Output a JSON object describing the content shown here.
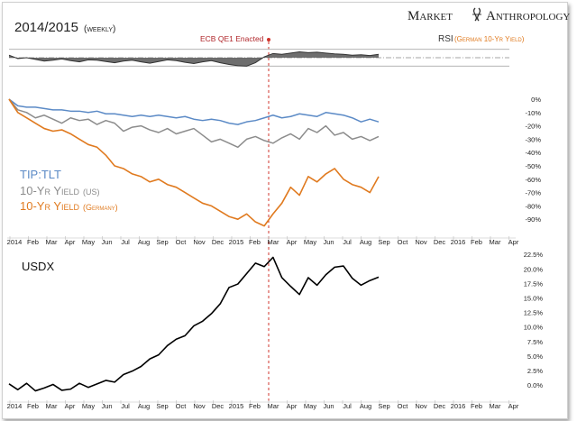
{
  "header": {
    "title": "2014/2015",
    "subtitle": "(weekly)",
    "brand_left": "Market",
    "brand_right": "Anthropology",
    "event_label": "ECB QE1 Enacted",
    "rsi_label": "RSI",
    "rsi_sublabel": "(German 10-Yr Yield)"
  },
  "colors": {
    "tip_tlt": "#5b8ac6",
    "us_yield": "#8c8c8c",
    "germany_yield": "#e07a1f",
    "usdx": "#000000",
    "event_line": "#d0342c",
    "rsi_fill": "#555555"
  },
  "x_axis_labels": [
    "2014",
    "Feb",
    "Mar",
    "Apr",
    "May",
    "Jun",
    "Jul",
    "Aug",
    "Sep",
    "Oct",
    "Nov",
    "Dec",
    "2015",
    "Feb",
    "Mar",
    "Apr",
    "May",
    "Jun",
    "Jul",
    "Aug",
    "Sep",
    "Oct",
    "Nov",
    "Dec",
    "2016",
    "Feb",
    "Mar",
    "Apr"
  ],
  "chart_data": [
    {
      "type": "area",
      "title": "RSI (German 10-Yr Yield)",
      "x": [
        0,
        2,
        4,
        6,
        8,
        10,
        12,
        14,
        16,
        18,
        20,
        22,
        24,
        26,
        28,
        30,
        32,
        34,
        36,
        38,
        40,
        42,
        44,
        46,
        48,
        50,
        52,
        54,
        56,
        58,
        60,
        62,
        64,
        66,
        68,
        70,
        72,
        74,
        76,
        78,
        80,
        82,
        84
      ],
      "values": [
        56,
        48,
        50,
        46,
        42,
        44,
        47,
        43,
        40,
        45,
        44,
        41,
        38,
        42,
        44,
        40,
        37,
        41,
        45,
        43,
        39,
        36,
        40,
        43,
        38,
        34,
        31,
        30,
        38,
        52,
        60,
        58,
        61,
        64,
        62,
        63,
        61,
        59,
        58,
        56,
        57,
        55,
        58
      ],
      "reference_lines": [
        70,
        50,
        30
      ],
      "ylim": [
        20,
        80
      ]
    },
    {
      "type": "line",
      "title": "TIP:TLT / 10-Yr Yield (US) / 10-Yr Yield (Germany)",
      "x": [
        0,
        2,
        4,
        6,
        8,
        10,
        12,
        14,
        16,
        18,
        20,
        22,
        24,
        26,
        28,
        30,
        32,
        34,
        36,
        38,
        40,
        42,
        44,
        46,
        48,
        50,
        52,
        54,
        56,
        58,
        60,
        62,
        64,
        66,
        68,
        70,
        72,
        74,
        76,
        78,
        80,
        82,
        84
      ],
      "series": [
        {
          "name": "TIP:TLT",
          "values": [
            0,
            -5,
            -6,
            -6,
            -7,
            -8,
            -8,
            -9,
            -9,
            -10,
            -9,
            -11,
            -11,
            -12,
            -13,
            -12,
            -13,
            -12,
            -13,
            -14,
            -13,
            -15,
            -16,
            -15,
            -16,
            -18,
            -19,
            -17,
            -16,
            -14,
            -12,
            -14,
            -13,
            -11,
            -12,
            -13,
            -10,
            -11,
            -12,
            -14,
            -17,
            -15,
            -17
          ]
        },
        {
          "name": "10-Yr Yield (US)",
          "values": [
            0,
            -8,
            -10,
            -14,
            -12,
            -15,
            -18,
            -14,
            -16,
            -15,
            -19,
            -16,
            -18,
            -24,
            -21,
            -20,
            -23,
            -25,
            -22,
            -26,
            -24,
            -22,
            -27,
            -32,
            -30,
            -33,
            -36,
            -30,
            -28,
            -31,
            -33,
            -29,
            -26,
            -30,
            -22,
            -25,
            -20,
            -27,
            -25,
            -30,
            -28,
            -31,
            -28
          ]
        },
        {
          "name": "10-Yr Yield (Germany)",
          "values": [
            0,
            -10,
            -14,
            -18,
            -22,
            -24,
            -23,
            -26,
            -30,
            -34,
            -36,
            -42,
            -50,
            -52,
            -56,
            -58,
            -62,
            -60,
            -64,
            -66,
            -70,
            -74,
            -78,
            -80,
            -84,
            -88,
            -90,
            -86,
            -92,
            -95,
            -86,
            -78,
            -66,
            -72,
            -58,
            -62,
            -56,
            -52,
            -60,
            -64,
            -66,
            -70,
            -58
          ]
        }
      ],
      "ylim": [
        -100,
        0
      ],
      "y_ticks": [
        0,
        -10,
        -20,
        -30,
        -40,
        -50,
        -60,
        -70,
        -80,
        -90
      ],
      "y_tick_labels": [
        "0%",
        "-10%",
        "-20%",
        "-30%",
        "-40%",
        "-50%",
        "-60%",
        "-70%",
        "-80%",
        "-90%"
      ],
      "legend": [
        "TIP:TLT",
        "10-Yr Yield",
        "10-Yr Yield"
      ],
      "legend_sub": [
        "",
        "(US)",
        "(Germany)"
      ]
    },
    {
      "type": "line",
      "title": "USDX",
      "x": [
        0,
        2,
        4,
        6,
        8,
        10,
        12,
        14,
        16,
        18,
        20,
        22,
        24,
        26,
        28,
        30,
        32,
        34,
        36,
        38,
        40,
        42,
        44,
        46,
        48,
        50,
        52,
        54,
        56,
        58,
        60,
        62,
        64,
        66,
        68,
        70,
        72,
        74,
        76,
        78,
        80,
        82,
        84
      ],
      "values": [
        0.2,
        -0.8,
        0.3,
        -1.0,
        -0.5,
        0.1,
        -0.9,
        -0.7,
        0.3,
        -0.4,
        0.2,
        0.8,
        0.5,
        1.8,
        2.4,
        3.2,
        4.5,
        5.2,
        6.8,
        7.9,
        8.5,
        10.2,
        11.0,
        12.3,
        14.0,
        16.8,
        17.4,
        19.2,
        21.0,
        20.4,
        22.0,
        18.5,
        17.0,
        15.6,
        18.5,
        17.2,
        19.0,
        20.3,
        20.5,
        18.4,
        17.2,
        18.0,
        18.6
      ],
      "ylim": [
        -2,
        23
      ],
      "y_ticks": [
        0,
        2.5,
        5,
        7.5,
        10,
        12.5,
        15,
        17.5,
        20,
        22.5
      ],
      "y_tick_labels": [
        "0.0%",
        "2.5%",
        "5.0%",
        "7.5%",
        "10.0%",
        "12.5%",
        "15.0%",
        "17.5%",
        "20.0%",
        "22.5%"
      ]
    }
  ]
}
